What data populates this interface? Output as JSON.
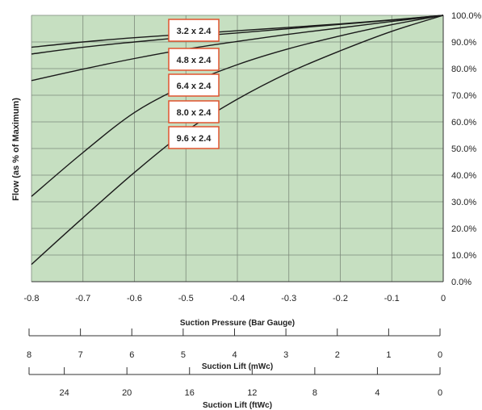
{
  "chart_data": {
    "type": "line",
    "xlabel": "Suction Pressure (Bar Gauge)",
    "ylabel": "Flow (as % of Maximum)",
    "xlim": [
      -0.8,
      0
    ],
    "ylim": [
      0,
      100
    ],
    "x_ticks": [
      -0.8,
      -0.7,
      -0.6,
      -0.5,
      -0.4,
      -0.3,
      -0.2,
      -0.1,
      0
    ],
    "x_tick_labels": [
      "-0.8",
      "-0.7",
      "-0.6",
      "-0.5",
      "-0.4",
      "-0.3",
      "-0.2",
      "-0.1",
      "0"
    ],
    "y_ticks": [
      0,
      10,
      20,
      30,
      40,
      50,
      60,
      70,
      80,
      90,
      100
    ],
    "y_tick_labels": [
      "0.0%",
      "10.0%",
      "20.0%",
      "30.0%",
      "40.0%",
      "50.0%",
      "60.0%",
      "70.0%",
      "80.0%",
      "90.0%",
      "100.0%"
    ],
    "grid": true,
    "background_color": "#c6dfc1",
    "line_color": "#1a1a1a",
    "label_border_color": "#e0532f",
    "series": [
      {
        "name": "3.2 x 2.4",
        "x": [
          -0.8,
          -0.7,
          -0.6,
          -0.5,
          -0.4,
          -0.3,
          -0.2,
          -0.1,
          0
        ],
        "values": [
          88,
          90,
          91.6,
          92.9,
          94.2,
          95.5,
          96.8,
          98.3,
          100
        ]
      },
      {
        "name": "4.8 x 2.4",
        "x": [
          -0.8,
          -0.7,
          -0.6,
          -0.5,
          -0.4,
          -0.3,
          -0.2,
          -0.1,
          0
        ],
        "values": [
          85.5,
          88,
          90,
          91.8,
          93.4,
          95,
          96.6,
          98.2,
          100
        ]
      },
      {
        "name": "6.4 x 2.4",
        "x": [
          -0.8,
          -0.7,
          -0.6,
          -0.5,
          -0.4,
          -0.3,
          -0.2,
          -0.1,
          0
        ],
        "values": [
          75.5,
          79.8,
          83.8,
          87.3,
          90.2,
          92.9,
          95.3,
          97.7,
          100
        ]
      },
      {
        "name": "8.0 x 2.4",
        "x": [
          -0.8,
          -0.7,
          -0.6,
          -0.5,
          -0.4,
          -0.3,
          -0.2,
          -0.1,
          0
        ],
        "values": [
          32,
          48.5,
          63.5,
          73.8,
          81.5,
          87.5,
          92.3,
          96.5,
          100
        ]
      },
      {
        "name": "9.6 x 2.4",
        "x": [
          -0.8,
          -0.7,
          -0.6,
          -0.5,
          -0.4,
          -0.3,
          -0.2,
          -0.1,
          0
        ],
        "values": [
          6.5,
          24,
          41,
          56.5,
          68.5,
          78.5,
          86.7,
          94,
          100
        ]
      }
    ],
    "secondary_axes": [
      {
        "label": "Suction Lift (mWc)",
        "min": 0,
        "max": 8,
        "ticks": [
          8,
          7,
          6,
          5,
          4,
          3,
          2,
          1,
          0
        ],
        "tick_labels": [
          "8",
          "7",
          "6",
          "5",
          "4",
          "3",
          "2",
          "1",
          "0"
        ]
      },
      {
        "label": "Suction Lift (ftWc)",
        "min": 0,
        "max": 26.25,
        "ticks": [
          26.25,
          24,
          20,
          16,
          12,
          8,
          4,
          0
        ],
        "tick_labels": [
          "",
          "24",
          "20",
          "16",
          "12",
          "8",
          "4",
          "0"
        ]
      }
    ]
  }
}
